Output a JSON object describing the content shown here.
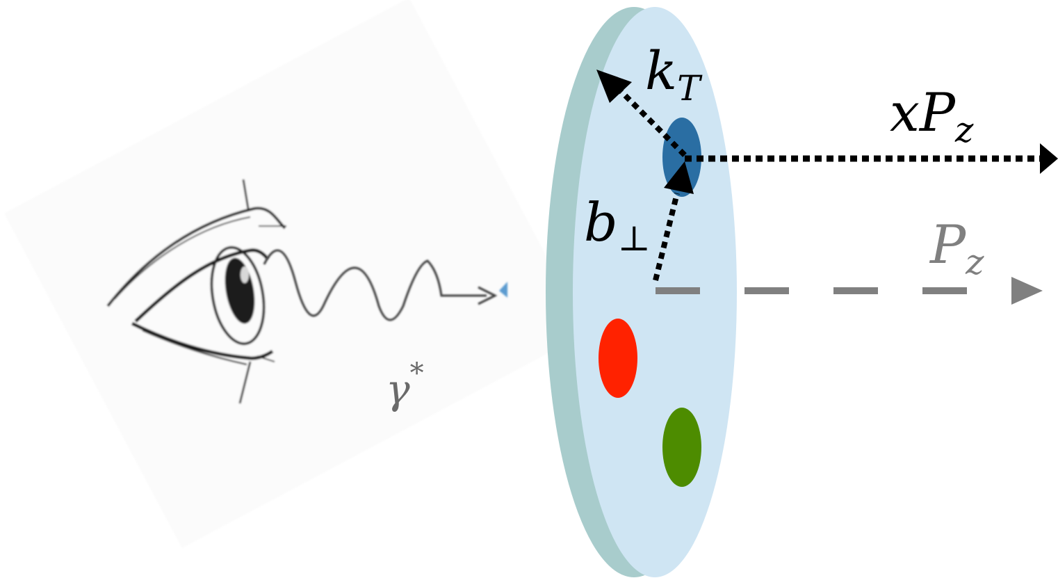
{
  "labels": {
    "kT": {
      "main": "k",
      "sub": "T"
    },
    "xPz": {
      "pre": "x",
      "main": "P",
      "sub": "z"
    },
    "bperp": {
      "main": "b",
      "sub": "⊥"
    },
    "Pz": {
      "main": "P",
      "sub": "z"
    },
    "gamma": {
      "main": "γ",
      "sup": "*"
    }
  },
  "partons": [
    {
      "name": "parton-blue",
      "color": "#2a6ea3"
    },
    {
      "name": "parton-red",
      "color": "#ff2200"
    },
    {
      "name": "parton-green",
      "color": "#4d8c00"
    }
  ],
  "colors": {
    "disk_face": "#cfe5f3",
    "disk_rim": "#a8cccc",
    "dotted_arrow": "#000000",
    "dashed_arrow": "#808080",
    "photon_label": "#6a6a6a"
  },
  "icons": {
    "observer": "eye-icon",
    "photon": "wavy-photon-icon"
  }
}
